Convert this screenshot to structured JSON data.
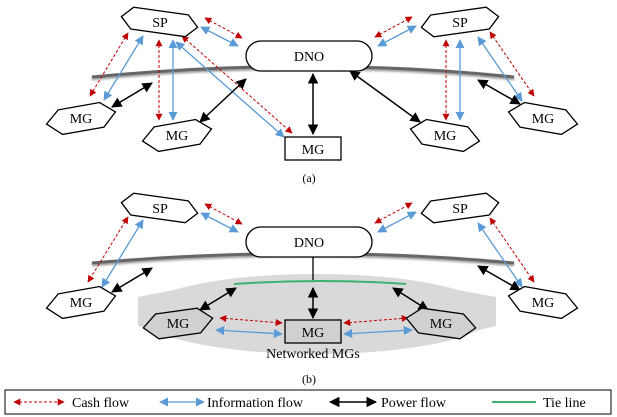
{
  "panel_a": {
    "dno": "DNO",
    "sp_left": "SP",
    "sp_right": "SP",
    "mg_left": "MG",
    "mg_center_left": "MG",
    "mg_center": "MG",
    "mg_center_right": "MG",
    "mg_right": "MG",
    "caption": "(a)"
  },
  "panel_b": {
    "dno": "DNO",
    "sp_left": "SP",
    "sp_right": "SP",
    "mg_left": "MG",
    "mg_right": "MG",
    "net_mg_left": "MG",
    "net_mg_center": "MG",
    "net_mg_right": "MG",
    "networked_label": "Networked MGs",
    "caption": "(b)"
  },
  "legend": {
    "cash_flow": "Cash flow",
    "information_flow": "Information flow",
    "power_flow": "Power flow",
    "tie_line": "Tie line"
  },
  "colors": {
    "cash": "#c00000",
    "information": "#5b9bd5",
    "power": "#000000",
    "tie_line": "#3cb371",
    "network_shade": "#d9d9d9"
  }
}
